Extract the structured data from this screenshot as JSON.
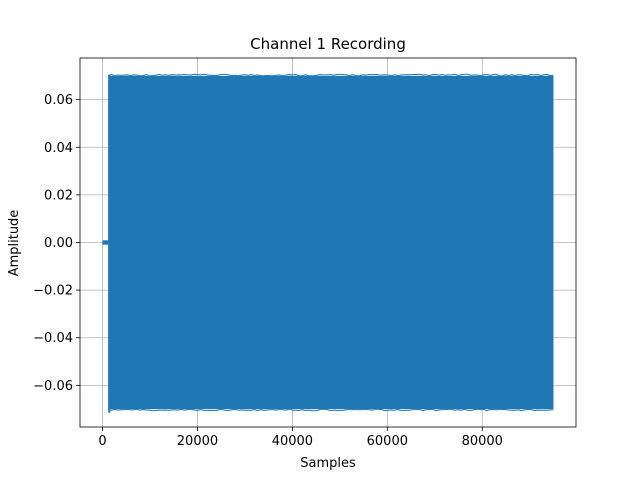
{
  "chart_data": {
    "type": "line",
    "title": "Channel 1 Recording",
    "xlabel": "Samples",
    "ylabel": "Amplitude",
    "xlim": [
      -4750,
      99750
    ],
    "ylim": [
      -0.0775,
      0.0775
    ],
    "xticks": [
      0,
      20000,
      40000,
      60000,
      80000
    ],
    "xtick_labels": [
      "0",
      "20000",
      "40000",
      "60000",
      "80000"
    ],
    "yticks": [
      -0.06,
      -0.04,
      -0.02,
      0.0,
      0.02,
      0.04,
      0.06
    ],
    "ytick_labels": [
      "−0.06",
      "−0.04",
      "−0.02",
      "0.00",
      "0.02",
      "0.04",
      "0.06"
    ],
    "grid": true,
    "series": [
      {
        "color": "#1f77b4",
        "segments": [
          {
            "x_start": 0,
            "x_end": 1200,
            "y_min": -0.0005,
            "y_max": 0.0005
          },
          {
            "x_start": 1200,
            "x_end": 95000,
            "y_min": -0.07,
            "y_max": 0.07
          }
        ],
        "peak_min": -0.0715,
        "peak_max": 0.0705
      }
    ]
  }
}
